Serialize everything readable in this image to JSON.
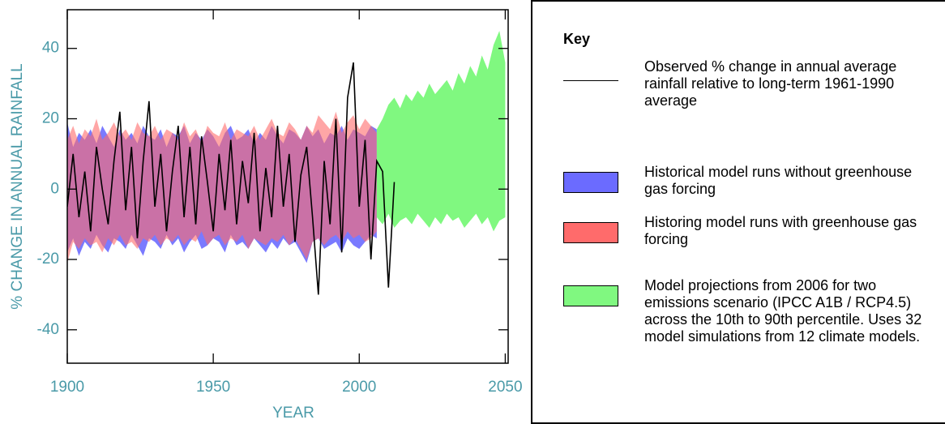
{
  "chart_data": {
    "type": "band-line",
    "xlabel": "YEAR",
    "ylabel": "% CHANGE IN ANNUAL RAINFALL",
    "xlim": [
      1900,
      2051
    ],
    "ylim": [
      -49.5,
      51
    ],
    "xticks": [
      1900,
      1950,
      2000,
      2050
    ],
    "yticks": [
      -40,
      -20,
      0,
      20,
      40
    ],
    "legend_title": "Key",
    "series": [
      {
        "name": "Observed % change in annual average rainfall relative to long-term 1961-1990 average",
        "color": "#000000",
        "x": [
          1900,
          1902,
          1904,
          1906,
          1908,
          1910,
          1912,
          1914,
          1916,
          1918,
          1920,
          1922,
          1924,
          1926,
          1928,
          1930,
          1932,
          1934,
          1936,
          1938,
          1940,
          1942,
          1944,
          1946,
          1948,
          1950,
          1952,
          1954,
          1956,
          1958,
          1960,
          1962,
          1964,
          1966,
          1968,
          1970,
          1972,
          1974,
          1976,
          1978,
          1980,
          1982,
          1984,
          1986,
          1988,
          1990,
          1992,
          1994,
          1996,
          1998,
          2000,
          2002,
          2004,
          2006,
          2008,
          2010,
          2012
        ],
        "values": [
          -5,
          10,
          -8,
          5,
          -12,
          12,
          0,
          -10,
          8,
          22,
          -6,
          12,
          -14,
          8,
          25,
          -5,
          10,
          -12,
          5,
          18,
          -8,
          12,
          -10,
          15,
          2,
          -12,
          10,
          -6,
          14,
          -10,
          8,
          -4,
          16,
          -12,
          6,
          -8,
          18,
          -5,
          10,
          -15,
          4,
          12,
          -8,
          -30,
          8,
          -10,
          20,
          -18,
          26,
          36,
          -5,
          14,
          -20,
          8,
          5,
          -28,
          2
        ]
      }
    ],
    "bands": [
      {
        "name": "Historical model runs without greenhouse gas forcing",
        "color": "#6b6bff",
        "x": [
          1900,
          1902,
          1904,
          1906,
          1908,
          1910,
          1912,
          1914,
          1916,
          1918,
          1920,
          1922,
          1924,
          1926,
          1928,
          1930,
          1932,
          1934,
          1936,
          1938,
          1940,
          1942,
          1944,
          1946,
          1948,
          1950,
          1952,
          1954,
          1956,
          1958,
          1960,
          1962,
          1964,
          1966,
          1968,
          1970,
          1972,
          1974,
          1976,
          1978,
          1980,
          1982,
          1984,
          1986,
          1988,
          1990,
          1992,
          1994,
          1996,
          1998,
          2000,
          2002,
          2004,
          2006
        ],
        "upper": [
          19,
          12,
          16,
          14,
          17,
          13,
          18,
          15,
          12,
          17,
          14,
          16,
          13,
          18,
          15,
          14,
          17,
          12,
          16,
          15,
          18,
          13,
          16,
          14,
          17,
          15,
          12,
          16,
          18,
          14,
          15,
          17,
          13,
          16,
          14,
          18,
          15,
          13,
          17,
          16,
          14,
          18,
          15,
          17,
          13,
          16,
          15,
          18,
          14,
          17,
          16,
          15,
          18,
          17
        ],
        "lower": [
          -18,
          -14,
          -19,
          -15,
          -17,
          -13,
          -16,
          -18,
          -14,
          -15,
          -17,
          -13,
          -16,
          -19,
          -14,
          -15,
          -17,
          -13,
          -16,
          -14,
          -18,
          -15,
          -13,
          -17,
          -16,
          -14,
          -15,
          -18,
          -13,
          -16,
          -15,
          -17,
          -14,
          -16,
          -18,
          -15,
          -17,
          -14,
          -16,
          -15,
          -18,
          -21,
          -15,
          -14,
          -17,
          -16,
          -15,
          -18,
          -14,
          -16,
          -17,
          -15,
          -13,
          -14
        ]
      },
      {
        "name": "Historing model runs with greenhouse gas forcing",
        "color": "#ff6b6b",
        "x": [
          1900,
          1902,
          1904,
          1906,
          1908,
          1910,
          1912,
          1914,
          1916,
          1918,
          1920,
          1922,
          1924,
          1926,
          1928,
          1930,
          1932,
          1934,
          1936,
          1938,
          1940,
          1942,
          1944,
          1946,
          1948,
          1950,
          1952,
          1954,
          1956,
          1958,
          1960,
          1962,
          1964,
          1966,
          1968,
          1970,
          1972,
          1974,
          1976,
          1978,
          1980,
          1982,
          1984,
          1986,
          1988,
          1990,
          1992,
          1994,
          1996,
          1998,
          2000,
          2002,
          2004,
          2006
        ],
        "upper": [
          14,
          18,
          13,
          17,
          15,
          20,
          14,
          16,
          19,
          15,
          17,
          14,
          19,
          16,
          15,
          18,
          14,
          17,
          16,
          14,
          19,
          15,
          17,
          13,
          18,
          16,
          15,
          19,
          14,
          17,
          16,
          15,
          18,
          14,
          17,
          20,
          16,
          15,
          19,
          17,
          14,
          18,
          16,
          21,
          19,
          17,
          22,
          16,
          19,
          21,
          17,
          20,
          18,
          16
        ],
        "lower": [
          -21,
          -15,
          -17,
          -14,
          -16,
          -15,
          -18,
          -14,
          -16,
          -13,
          -16,
          -15,
          -17,
          -14,
          -15,
          -13,
          -16,
          -14,
          -15,
          -13,
          -16,
          -14,
          -15,
          -12,
          -16,
          -14,
          -13,
          -16,
          -14,
          -15,
          -13,
          -17,
          -14,
          -15,
          -16,
          -14,
          -15,
          -13,
          -16,
          -14,
          -17,
          -20,
          -15,
          -14,
          -16,
          -14,
          -13,
          -15,
          -12,
          -14,
          -13,
          -15,
          -14,
          -12
        ]
      },
      {
        "name": "Model projections from 2006 for two emissions scenario (IPCC A1B / RCP4.5) across the 10th to 90th percentile. Uses 32 model simulations from 12 climate models.",
        "color": "#80f880",
        "x": [
          2006,
          2008,
          2010,
          2012,
          2014,
          2016,
          2018,
          2020,
          2022,
          2024,
          2026,
          2028,
          2030,
          2032,
          2034,
          2036,
          2038,
          2040,
          2042,
          2044,
          2046,
          2048,
          2050
        ],
        "upper": [
          17,
          20,
          24,
          26,
          23,
          27,
          25,
          28,
          26,
          30,
          27,
          29,
          31,
          28,
          33,
          30,
          35,
          32,
          38,
          34,
          41,
          45,
          36
        ],
        "lower": [
          -8,
          -10,
          -7,
          -11,
          -9,
          -8,
          -10,
          -7,
          -9,
          -11,
          -8,
          -10,
          -7,
          -9,
          -8,
          -11,
          -9,
          -7,
          -10,
          -8,
          -12,
          -9,
          -8
        ]
      }
    ]
  }
}
